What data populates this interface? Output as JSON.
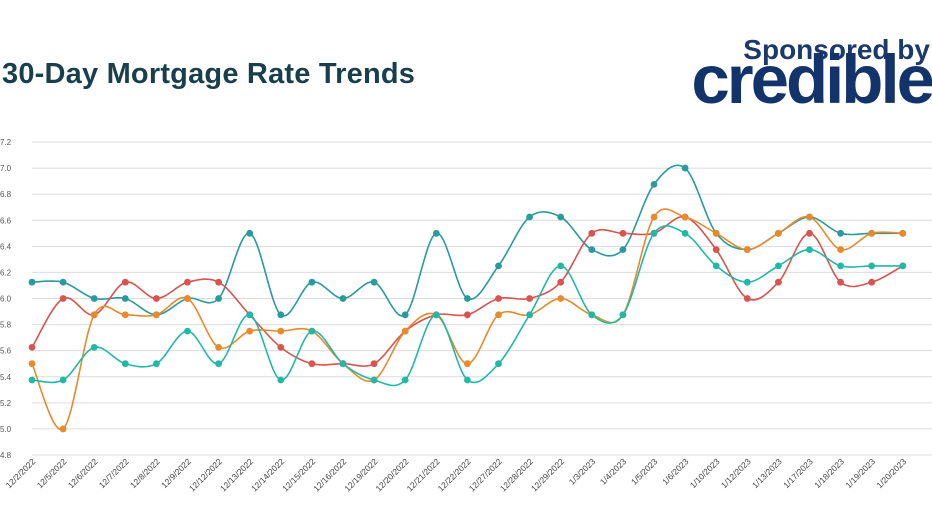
{
  "header": {
    "title": "30-Day Mortgage Rate Trends",
    "sponsored_label": "Sponsored by",
    "sponsor_logo": "credible"
  },
  "colors": {
    "title": "#1a3f4c",
    "sponsor": "#13346a",
    "grid": "#dcdcdc"
  },
  "chart_data": {
    "type": "line",
    "title": "30-Day Mortgage Rate Trends",
    "xlabel": "",
    "ylabel": "",
    "ylim": [
      4.8,
      7.2
    ],
    "yticks": [
      "4.8",
      "5.0",
      "5.2",
      "5.4",
      "5.6",
      "5.8",
      "6.0",
      "6.2",
      "6.4",
      "6.6",
      "6.8",
      "7.0",
      "7.2"
    ],
    "grid": true,
    "legend": "none",
    "categories": [
      "12/2/2022",
      "12/5/2022",
      "12/6/2022",
      "12/7/2022",
      "12/8/2022",
      "12/9/2022",
      "12/12/2022",
      "12/13/2022",
      "12/14/2022",
      "12/15/2022",
      "12/16/2022",
      "12/19/2022",
      "12/20/2022",
      "12/21/2022",
      "12/22/2022",
      "12/27/2022",
      "12/28/2022",
      "12/29/2022",
      "1/3/2023",
      "1/4/2023",
      "1/5/2023",
      "1/6/2023",
      "1/10/2023",
      "1/12/2023",
      "1/13/2023",
      "1/17/2023",
      "1/18/2023",
      "1/19/2023",
      "1/20/2023"
    ],
    "series": [
      {
        "color": "#2a9a9c",
        "values": [
          6.125,
          6.125,
          6.0,
          6.0,
          5.875,
          6.0,
          6.0,
          6.5,
          5.875,
          6.125,
          6.0,
          6.125,
          5.875,
          6.5,
          6.0,
          6.25,
          6.625,
          6.625,
          6.375,
          6.375,
          6.875,
          7.0,
          6.5,
          6.375,
          6.5,
          6.625,
          6.5,
          6.5,
          6.5
        ]
      },
      {
        "color": "#d9534f",
        "values": [
          5.625,
          6.0,
          5.875,
          6.125,
          6.0,
          6.125,
          6.125,
          5.875,
          5.625,
          5.5,
          5.5,
          5.5,
          5.75,
          5.875,
          5.875,
          6.0,
          6.0,
          6.125,
          6.5,
          6.5,
          6.5,
          6.625,
          6.375,
          6.0,
          6.125,
          6.5,
          6.125,
          6.125,
          6.25
        ]
      },
      {
        "color": "#e8892b",
        "values": [
          5.5,
          5.0,
          5.875,
          5.875,
          5.875,
          6.0,
          5.625,
          5.75,
          5.75,
          5.75,
          5.5,
          5.375,
          5.75,
          5.875,
          5.5,
          5.875,
          5.875,
          6.0,
          5.875,
          5.875,
          6.625,
          6.625,
          6.5,
          6.375,
          6.5,
          6.625,
          6.375,
          6.5,
          6.5
        ]
      },
      {
        "color": "#22b8a8",
        "values": [
          5.375,
          5.375,
          5.625,
          5.5,
          5.5,
          5.75,
          5.5,
          5.875,
          5.375,
          5.75,
          5.5,
          5.375,
          5.375,
          5.875,
          5.375,
          5.5,
          5.875,
          6.25,
          5.875,
          5.875,
          6.5,
          6.5,
          6.25,
          6.125,
          6.25,
          6.375,
          6.25,
          6.25,
          6.25
        ]
      }
    ]
  }
}
